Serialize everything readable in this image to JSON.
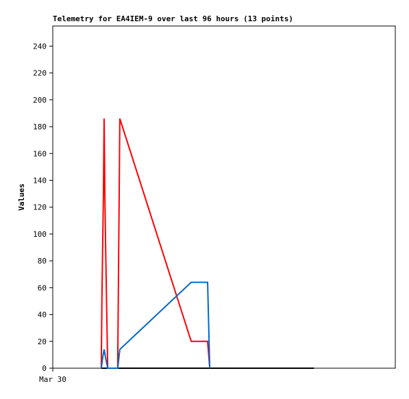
{
  "chart_data": {
    "type": "line",
    "title": "Telemetry for EA4IEM-9 over last 96 hours (13 points)",
    "y_label": "Values",
    "x": [
      13.6,
      13.8,
      14.0,
      14.2,
      14.4,
      14.6,
      14.8,
      15.4,
      18.2,
      18.8,
      38.8,
      43.4,
      44.0,
      73.2
    ],
    "xlim": [
      0,
      96
    ],
    "xticks": [
      {
        "value": 0,
        "label": "Mar 30"
      }
    ],
    "ylim": [
      0,
      255
    ],
    "yticks": [
      0,
      20,
      40,
      60,
      80,
      100,
      120,
      140,
      160,
      180,
      200,
      220,
      240
    ],
    "series": [
      {
        "color": "#000000",
        "values": [
          0,
          0,
          0,
          0,
          0,
          0,
          0,
          0,
          0,
          0,
          0,
          0,
          0,
          0
        ]
      },
      {
        "color": "#ff0000",
        "values": [
          0,
          56,
          93,
          130,
          186,
          130,
          93,
          0,
          0,
          186,
          20,
          20,
          0,
          null
        ]
      },
      {
        "color": "#0066cc",
        "values": [
          0,
          4,
          8,
          11,
          14,
          11,
          8,
          0,
          0,
          14,
          64,
          64,
          0,
          null
        ]
      }
    ]
  }
}
